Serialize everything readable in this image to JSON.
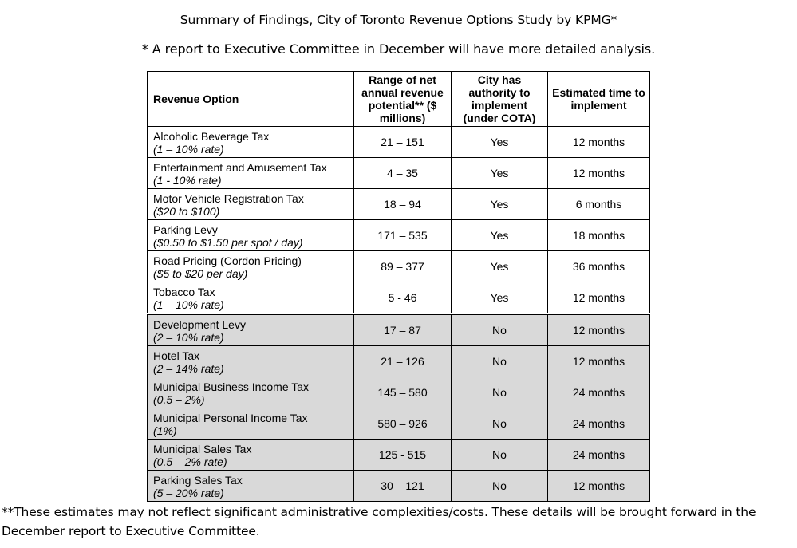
{
  "title": "Summary of Findings, City of Toronto Revenue Options Study by KPMG*",
  "subtitle": "* A report to Executive Committee in December will have more detailed analysis.",
  "table": {
    "headers": [
      "Revenue Option",
      "Range of net annual revenue potential** ($ millions)",
      "City has authority to implement (under COTA)",
      "Estimated time to implement"
    ],
    "rows": [
      {
        "name": "Alcoholic Beverage Tax",
        "detail": "(1 – 10% rate)",
        "range": "21 – 151",
        "authority": "Yes",
        "time": "12 months"
      },
      {
        "name": "Entertainment and Amusement Tax",
        "detail": "(1 - 10% rate)",
        "range": "4 – 35",
        "authority": "Yes",
        "time": "12 months"
      },
      {
        "name": "Motor Vehicle Registration Tax",
        "detail": "($20 to $100)",
        "range": "18 – 94",
        "authority": "Yes",
        "time": "6 months"
      },
      {
        "name": "Parking Levy",
        "detail": "($0.50 to $1.50 per spot / day)",
        "range": "171 – 535",
        "authority": "Yes",
        "time": "18 months"
      },
      {
        "name": "Road Pricing (Cordon Pricing)",
        "detail": "($5 to $20 per day)",
        "range": "89 – 377",
        "authority": "Yes",
        "time": "36 months"
      },
      {
        "name": "Tobacco Tax",
        "detail": "(1 – 10% rate)",
        "range": "5 - 46",
        "authority": "Yes",
        "time": "12 months"
      },
      {
        "name": "Development Levy",
        "detail": "(2 – 10% rate)",
        "range": "17 – 87",
        "authority": "No",
        "time": "12 months"
      },
      {
        "name": "Hotel Tax",
        "detail": "(2 – 14% rate)",
        "range": "21 – 126",
        "authority": "No",
        "time": "12 months"
      },
      {
        "name": "Municipal Business Income Tax",
        "detail": "(0.5 – 2%)",
        "range": "145 – 580",
        "authority": "No",
        "time": "24 months"
      },
      {
        "name": "Municipal Personal Income Tax",
        "detail": "(1%)",
        "range": "580 – 926",
        "authority": "No",
        "time": "24 months"
      },
      {
        "name": "Municipal Sales Tax",
        "detail": "(0.5 – 2% rate)",
        "range": "125 - 515",
        "authority": "No",
        "time": "24 months"
      },
      {
        "name": "Parking Sales Tax",
        "detail": "(5 – 20% rate)",
        "range": "30 – 121",
        "authority": "No",
        "time": "12 months"
      }
    ]
  },
  "footnote": "**These estimates may not reflect significant administrative complexities/costs. These details will be brought forward in the December report to Executive Committee."
}
